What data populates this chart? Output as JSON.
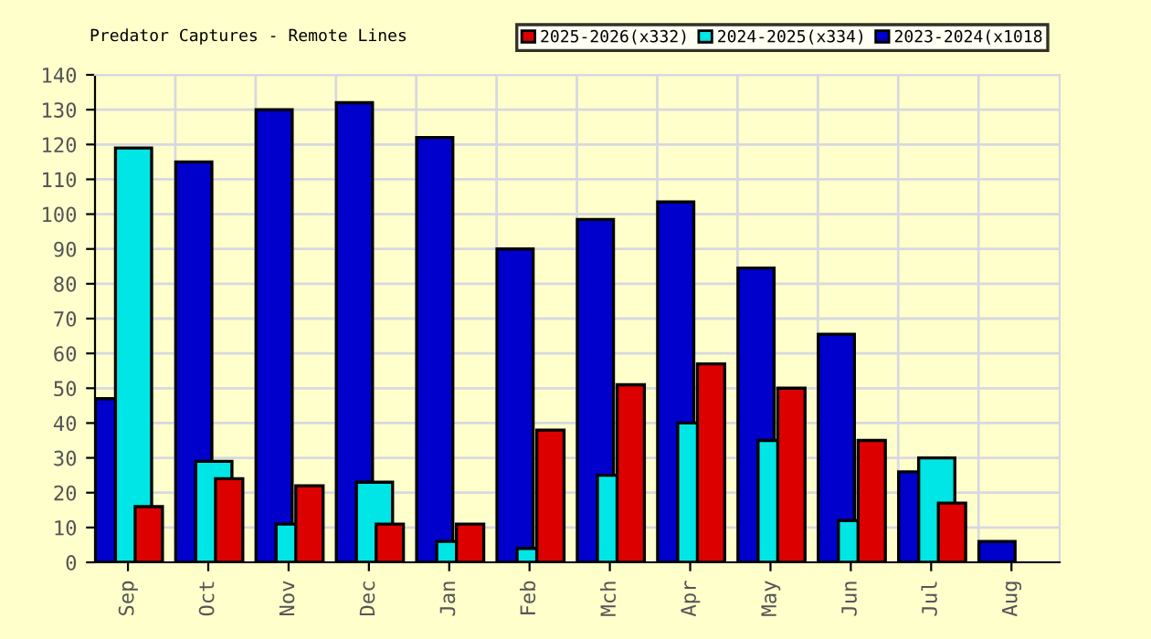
{
  "chart_data": {
    "type": "bar",
    "title": "Predator Captures - Remote Lines",
    "categories": [
      "Sep",
      "Oct",
      "Nov",
      "Dec",
      "Jan",
      "Feb",
      "Mch",
      "Apr",
      "May",
      "Jun",
      "Jul",
      "Aug"
    ],
    "series": [
      {
        "name": "2023-2024(x1018",
        "color": "#0000cc",
        "values": [
          47,
          115,
          130,
          132,
          122,
          90,
          98.5,
          103.5,
          84.5,
          65.5,
          26,
          6
        ]
      },
      {
        "name": "2024-2025(x334)",
        "color": "#00e5e5",
        "values": [
          119,
          29,
          11,
          23,
          6,
          4,
          25,
          40,
          35,
          12,
          30,
          null
        ]
      },
      {
        "name": "2025-2026(x332)",
        "color": "#dd0000",
        "values": [
          16,
          24,
          22,
          11,
          11,
          38,
          51,
          57,
          50,
          35,
          17,
          null
        ]
      }
    ],
    "ylim": [
      0,
      140
    ],
    "yticks": [
      0,
      10,
      20,
      30,
      40,
      50,
      60,
      70,
      80,
      90,
      100,
      110,
      120,
      130,
      140
    ],
    "grid": true,
    "legend": "top right"
  }
}
